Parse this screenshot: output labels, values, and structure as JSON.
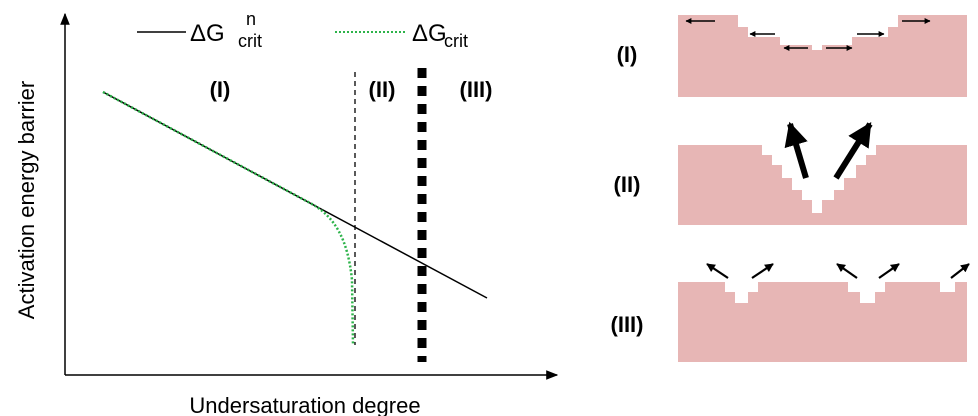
{
  "legend": [
    {
      "symbol": "ΔG",
      "superscript": "n",
      "subscript": "crit"
    },
    {
      "symbol": "ΔG",
      "subscript": "crit"
    }
  ],
  "regions": [
    "(I)",
    "(II)",
    "(III)"
  ],
  "axes": {
    "y_label": "Activation energy barrier",
    "x_label": "Undersaturation degree"
  },
  "panels": [
    {
      "label": "(I)"
    },
    {
      "label": "(II)"
    },
    {
      "label": "(III)"
    }
  ]
}
